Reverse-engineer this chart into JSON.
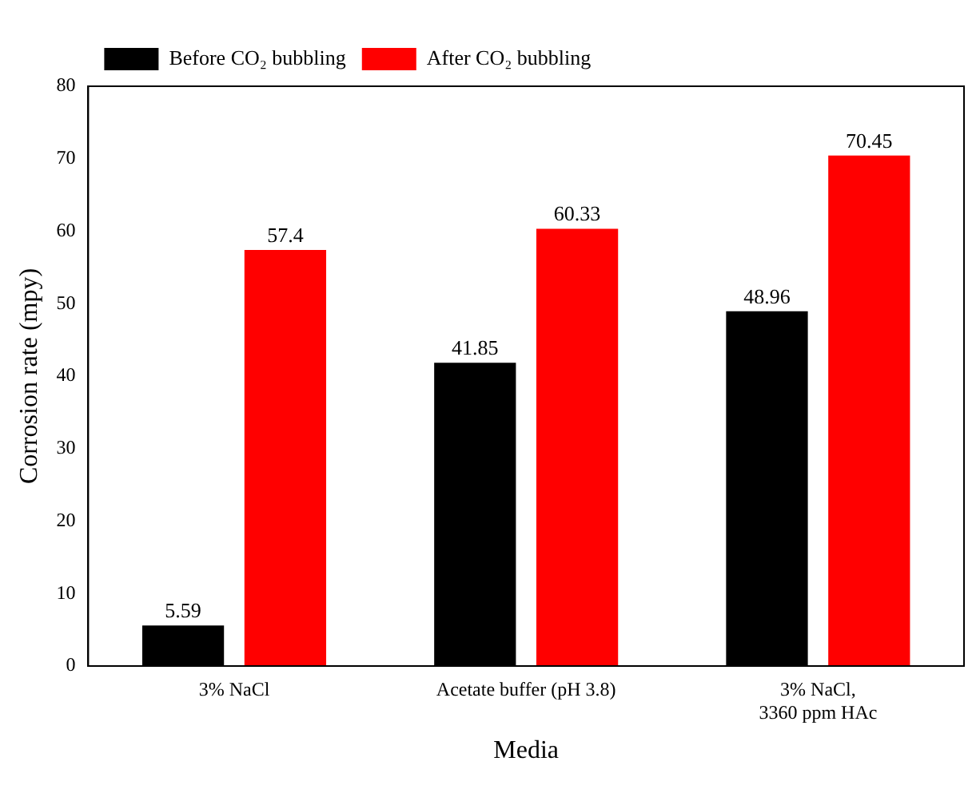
{
  "chart_data": {
    "type": "bar",
    "xlabel": "Media",
    "ylabel": "Corrosion rate (mpy)",
    "categories": [
      "3% NaCl",
      "Acetate buffer (pH 3.8)",
      "3% NaCl, 3360 ppm HAc"
    ],
    "series": [
      {
        "name": "Before CO₂ bubbling",
        "color": "#000000",
        "values": [
          5.59,
          41.85,
          48.96
        ]
      },
      {
        "name": "After CO₂ bubbling",
        "color": "#ff0000",
        "values": [
          57.4,
          60.33,
          70.45
        ]
      }
    ],
    "ylim": [
      0,
      80
    ],
    "yticks": [
      0,
      10,
      20,
      30,
      40,
      50,
      60,
      70,
      80
    ],
    "grid": false,
    "legend": "top left",
    "data_labels": true
  }
}
